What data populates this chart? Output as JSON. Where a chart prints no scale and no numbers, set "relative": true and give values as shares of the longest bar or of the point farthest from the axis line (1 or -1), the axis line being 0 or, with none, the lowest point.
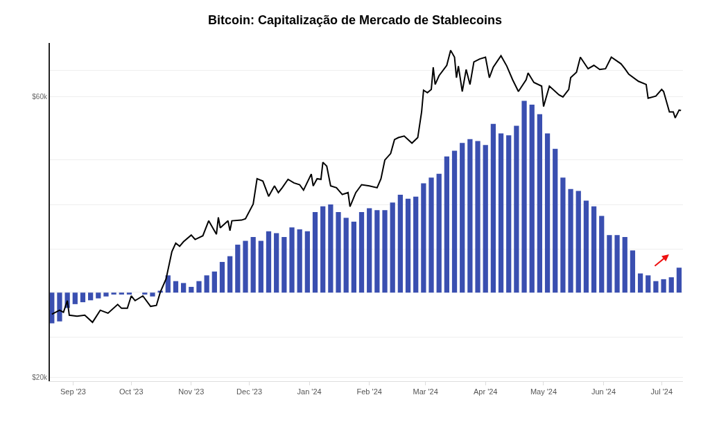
{
  "chart_data": [
    {
      "type": "line",
      "title": "Bitcoin: Capitalização de Mercado de Stablecoins",
      "xlim": [
        "2023-08-20",
        "2024-07-12"
      ],
      "xticks": [
        {
          "value": "2023-09-01",
          "label": "Sep '23"
        },
        {
          "value": "2023-10-01",
          "label": "Oct '23"
        },
        {
          "value": "2023-11-01",
          "label": "Nov '23"
        },
        {
          "value": "2023-12-01",
          "label": "Dec '23"
        },
        {
          "value": "2024-01-01",
          "label": "Jan '24"
        },
        {
          "value": "2024-02-01",
          "label": "Feb '24"
        },
        {
          "value": "2024-03-01",
          "label": "Mar '24"
        },
        {
          "value": "2024-04-01",
          "label": "Apr '24"
        },
        {
          "value": "2024-05-01",
          "label": "May '24"
        },
        {
          "value": "2024-06-01",
          "label": "Jun '24"
        },
        {
          "value": "2024-07-01",
          "label": "Jul '24"
        }
      ],
      "ylim": [
        19700,
        74000
      ],
      "log": true,
      "yticks": [
        {
          "value": 20000,
          "label": "$20k"
        },
        {
          "value": 23400,
          "label": null
        },
        {
          "value": 27900,
          "label": null
        },
        {
          "value": 33000,
          "label": null
        },
        {
          "value": 39300,
          "label": null
        },
        {
          "value": 46900,
          "label": null
        },
        {
          "value": 60000,
          "label": "$60k"
        },
        {
          "value": 66400,
          "label": null
        }
      ],
      "grid": "y",
      "series": [
        {
          "color": "#000000",
          "x": [
            "2023-08-21",
            "2023-08-25",
            "2023-08-27",
            "2023-08-29",
            "2023-08-30",
            "2023-09-03",
            "2023-09-07",
            "2023-09-11",
            "2023-09-15",
            "2023-09-19",
            "2023-09-24",
            "2023-09-26",
            "2023-09-29",
            "2023-10-01",
            "2023-10-03",
            "2023-10-07",
            "2023-10-11",
            "2023-10-14",
            "2023-10-16",
            "2023-10-19",
            "2023-10-22",
            "2023-10-24",
            "2023-10-26",
            "2023-10-28",
            "2023-11-01",
            "2023-11-03",
            "2023-11-07",
            "2023-11-10",
            "2023-11-14",
            "2023-11-15",
            "2023-11-16",
            "2023-11-20",
            "2023-11-21",
            "2023-11-22",
            "2023-11-27",
            "2023-11-29",
            "2023-12-03",
            "2023-12-05",
            "2023-12-08",
            "2023-12-11",
            "2023-12-14",
            "2023-12-16",
            "2023-12-18",
            "2023-12-21",
            "2023-12-24",
            "2023-12-27",
            "2023-12-29",
            "2024-01-02",
            "2024-01-03",
            "2024-01-05",
            "2024-01-07",
            "2024-01-08",
            "2024-01-10",
            "2024-01-12",
            "2024-01-15",
            "2024-01-18",
            "2024-01-21",
            "2024-01-22",
            "2024-01-25",
            "2024-01-28",
            "2024-02-01",
            "2024-02-05",
            "2024-02-07",
            "2024-02-09",
            "2024-02-12",
            "2024-02-14",
            "2024-02-16",
            "2024-02-19",
            "2024-02-23",
            "2024-02-26",
            "2024-02-28",
            "2024-02-29",
            "2024-03-02",
            "2024-03-04",
            "2024-03-05",
            "2024-03-06",
            "2024-03-08",
            "2024-03-12",
            "2024-03-14",
            "2024-03-16",
            "2024-03-17",
            "2024-03-18",
            "2024-03-20",
            "2024-03-22",
            "2024-03-24",
            "2024-03-26",
            "2024-03-29",
            "2024-04-01",
            "2024-04-03",
            "2024-04-05",
            "2024-04-09",
            "2024-04-12",
            "2024-04-15",
            "2024-04-18",
            "2024-04-22",
            "2024-04-23",
            "2024-04-26",
            "2024-04-30",
            "2024-05-01",
            "2024-05-04",
            "2024-05-09",
            "2024-05-11",
            "2024-05-14",
            "2024-05-15",
            "2024-05-18",
            "2024-05-20",
            "2024-05-24",
            "2024-05-27",
            "2024-05-30",
            "2024-06-02",
            "2024-06-05",
            "2024-06-10",
            "2024-06-12",
            "2024-06-14",
            "2024-06-19",
            "2024-06-23",
            "2024-06-24",
            "2024-06-28",
            "2024-07-01",
            "2024-07-02",
            "2024-07-05",
            "2024-07-07",
            "2024-07-08",
            "2024-07-10",
            "2024-07-11"
          ],
          "values": [
            25600,
            26000,
            25800,
            27000,
            25500,
            25400,
            25500,
            24800,
            26000,
            25700,
            26600,
            26200,
            26200,
            27500,
            27000,
            27500,
            26400,
            26500,
            27900,
            29400,
            32700,
            33800,
            33400,
            34000,
            34900,
            34300,
            34800,
            36900,
            35000,
            37400,
            35900,
            36900,
            35500,
            36900,
            37000,
            37200,
            39400,
            43500,
            43100,
            40600,
            42300,
            41200,
            42000,
            43400,
            42800,
            42500,
            41600,
            44300,
            42300,
            43500,
            43400,
            46400,
            45700,
            42300,
            42000,
            40900,
            41200,
            39000,
            41200,
            42500,
            42300,
            42000,
            43500,
            46800,
            48000,
            50700,
            51100,
            51400,
            50000,
            51100,
            56500,
            61500,
            60900,
            61700,
            67300,
            62900,
            65100,
            67800,
            71900,
            70000,
            64600,
            67600,
            61200,
            66700,
            62900,
            68700,
            69500,
            70000,
            64600,
            67300,
            70400,
            67600,
            64100,
            61200,
            64100,
            65800,
            63400,
            62500,
            57700,
            62500,
            60400,
            59900,
            61700,
            64600,
            66000,
            70000,
            66900,
            67800,
            66700,
            66900,
            70000,
            68200,
            66900,
            65500,
            63700,
            62900,
            59600,
            60100,
            61700,
            61200,
            56500,
            56500,
            55200,
            56900,
            56800
          ]
        }
      ]
    },
    {
      "type": "bar",
      "relative": true,
      "tick_labels": false,
      "xlim": [
        "2023-08-20",
        "2024-07-12"
      ],
      "color": "#3a4fb0",
      "x": [
        "2023-08-21",
        "2023-08-25",
        "2023-08-29",
        "2023-09-02",
        "2023-09-06",
        "2023-09-10",
        "2023-09-14",
        "2023-09-18",
        "2023-09-22",
        "2023-09-26",
        "2023-09-30",
        "2023-10-04",
        "2023-10-08",
        "2023-10-12",
        "2023-10-16",
        "2023-10-20",
        "2023-10-24",
        "2023-10-28",
        "2023-11-01",
        "2023-11-05",
        "2023-11-09",
        "2023-11-13",
        "2023-11-17",
        "2023-11-21",
        "2023-11-25",
        "2023-11-29",
        "2023-12-03",
        "2023-12-07",
        "2023-12-11",
        "2023-12-15",
        "2023-12-19",
        "2023-12-23",
        "2023-12-27",
        "2023-12-31",
        "2024-01-04",
        "2024-01-08",
        "2024-01-12",
        "2024-01-16",
        "2024-01-20",
        "2024-01-24",
        "2024-01-28",
        "2024-02-01",
        "2024-02-05",
        "2024-02-09",
        "2024-02-13",
        "2024-02-17",
        "2024-02-21",
        "2024-02-25",
        "2024-02-29",
        "2024-03-04",
        "2024-03-08",
        "2024-03-12",
        "2024-03-16",
        "2024-03-20",
        "2024-03-24",
        "2024-03-28",
        "2024-04-01",
        "2024-04-05",
        "2024-04-09",
        "2024-04-13",
        "2024-04-17",
        "2024-04-21",
        "2024-04-25",
        "2024-04-29",
        "2024-05-03",
        "2024-05-07",
        "2024-05-11",
        "2024-05-15",
        "2024-05-19",
        "2024-05-23",
        "2024-05-27",
        "2024-05-31",
        "2024-06-04",
        "2024-06-08",
        "2024-06-12",
        "2024-06-16",
        "2024-06-20",
        "2024-06-24",
        "2024-06-28",
        "2024-07-02",
        "2024-07-06",
        "2024-07-10"
      ],
      "values": [
        -0.16,
        -0.15,
        -0.08,
        -0.06,
        -0.05,
        -0.04,
        -0.03,
        -0.02,
        -0.01,
        -0.01,
        -0.01,
        0.0,
        -0.01,
        -0.02,
        0.01,
        0.09,
        0.06,
        0.05,
        0.03,
        0.06,
        0.09,
        0.11,
        0.16,
        0.19,
        0.25,
        0.27,
        0.29,
        0.27,
        0.32,
        0.31,
        0.29,
        0.34,
        0.33,
        0.32,
        0.42,
        0.45,
        0.46,
        0.42,
        0.39,
        0.37,
        0.42,
        0.44,
        0.43,
        0.43,
        0.47,
        0.51,
        0.49,
        0.5,
        0.57,
        0.6,
        0.62,
        0.71,
        0.74,
        0.78,
        0.8,
        0.79,
        0.77,
        0.88,
        0.83,
        0.82,
        0.87,
        1.0,
        0.98,
        0.93,
        0.83,
        0.75,
        0.6,
        0.54,
        0.53,
        0.48,
        0.45,
        0.4,
        0.3,
        0.3,
        0.29,
        0.22,
        0.1,
        0.09,
        0.06,
        0.07,
        0.08,
        0.13
      ]
    }
  ]
}
